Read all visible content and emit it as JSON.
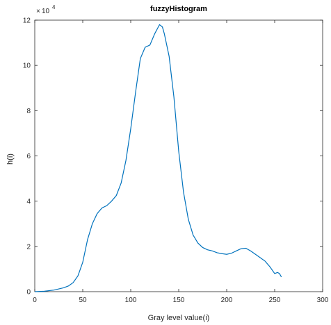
{
  "chart_data": {
    "type": "line",
    "title": "fuzzyHistogram",
    "xlabel": "Gray level value(i)",
    "ylabel": "h(i)",
    "xlim": [
      0,
      300
    ],
    "ylim": [
      0,
      120000
    ],
    "x_ticks": [
      0,
      50,
      100,
      150,
      200,
      250,
      300
    ],
    "y_ticks": [
      0,
      2,
      4,
      6,
      8,
      10,
      12
    ],
    "y_multiplier": {
      "base": "10",
      "exponent": "4"
    },
    "grid": false,
    "line_color": "#0072BD",
    "series": [
      {
        "x": [
          0,
          10,
          20,
          30,
          35,
          40,
          45,
          50,
          55,
          60,
          65,
          70,
          75,
          80,
          85,
          90,
          95,
          100,
          105,
          110,
          115,
          120,
          125,
          130,
          133,
          135,
          140,
          145,
          150,
          155,
          160,
          165,
          170,
          175,
          180,
          185,
          190,
          195,
          200,
          205,
          210,
          215,
          220,
          225,
          230,
          235,
          240,
          245,
          250,
          253,
          255,
          257
        ],
        "y": [
          0,
          200,
          700,
          1700,
          2500,
          4000,
          7000,
          13000,
          23000,
          30000,
          34500,
          37000,
          38000,
          40000,
          42500,
          48000,
          58000,
          72000,
          88000,
          103000,
          108000,
          109000,
          114000,
          118000,
          117000,
          114000,
          104000,
          86000,
          62000,
          44000,
          32000,
          25000,
          21500,
          19500,
          18500,
          18000,
          17200,
          16800,
          16500,
          17000,
          18000,
          19000,
          19200,
          18000,
          16500,
          15000,
          13500,
          11000,
          8000,
          8500,
          8000,
          6500
        ]
      }
    ]
  }
}
